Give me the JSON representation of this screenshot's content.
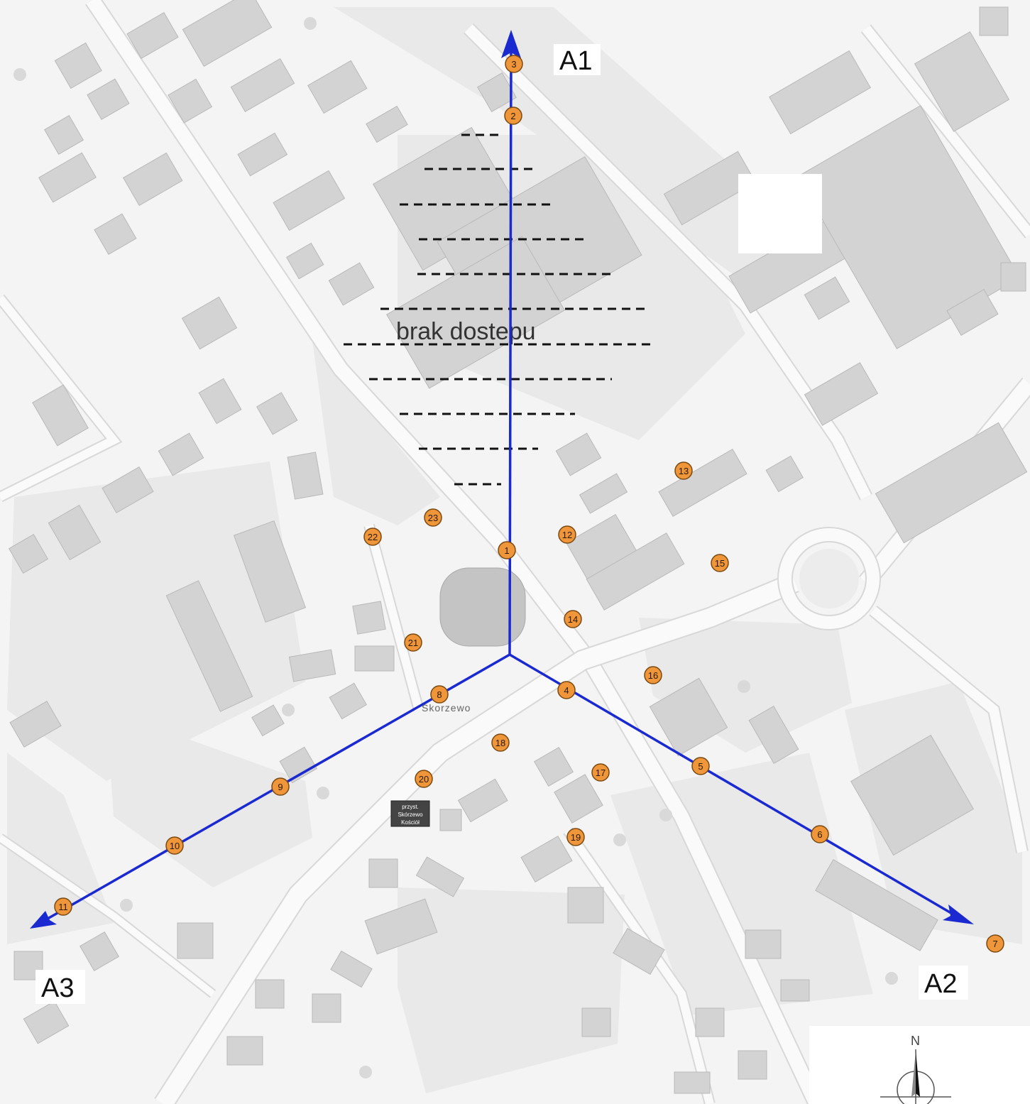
{
  "axes": [
    {
      "id": "A1",
      "label": "A1"
    },
    {
      "id": "A2",
      "label": "A2"
    },
    {
      "id": "A3",
      "label": "A3"
    }
  ],
  "no_access_label": "brak dostepu",
  "place_name": "Skorzewo",
  "bus_stop_lines": [
    "przyst.",
    "Skórzewo",
    "Kościół"
  ],
  "north_label": "N",
  "points": [
    "1",
    "2",
    "3",
    "4",
    "5",
    "6",
    "7",
    "8",
    "9",
    "10",
    "11",
    "12",
    "13",
    "14",
    "15",
    "16",
    "17",
    "18",
    "19",
    "20",
    "21",
    "22",
    "23"
  ],
  "colors": {
    "axis": "#1a2ad0",
    "point_fill": "#f0963a",
    "building": "#d3d3d3",
    "background": "#f4f4f4"
  }
}
